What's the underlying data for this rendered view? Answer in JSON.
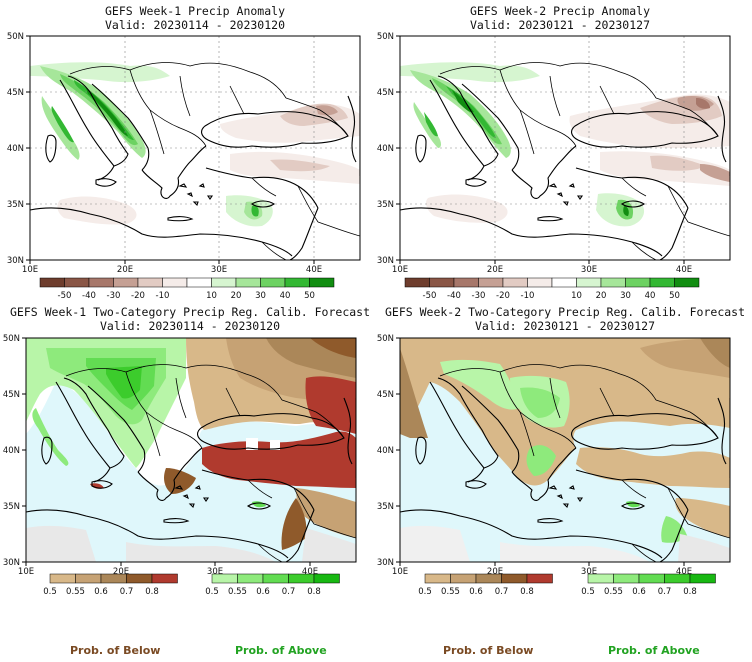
{
  "panels": [
    {
      "title": "GEFS Week-1 Precip Anomaly",
      "valid": "Valid: 20230114 - 20230120"
    },
    {
      "title": "GEFS Week-2 Precip Anomaly",
      "valid": "Valid: 20230121 - 20230127"
    },
    {
      "title": "GEFS Week-1 Two-Category Precip Reg. Calib. Forecast",
      "valid": "Valid: 20230114 - 20230120"
    },
    {
      "title": "GEFS Week-2 Two-Category Precip Reg. Calib. Forecast",
      "valid": "Valid: 20230121 - 20230127"
    }
  ],
  "axes": {
    "lat_labels": [
      "50N",
      "45N",
      "40N",
      "35N",
      "30N"
    ],
    "lon_labels": [
      "10E",
      "20E",
      "30E",
      "40E"
    ]
  },
  "anomaly_colorbar": {
    "labels": [
      "-50",
      "-40",
      "-30",
      "-20",
      "-10",
      "10",
      "20",
      "30",
      "40",
      "50"
    ],
    "colors": [
      "#6e3d2d",
      "#8a5646",
      "#a7776a",
      "#c5a094",
      "#e2cbc3",
      "#f5ece9",
      "#ffffff",
      "#d6f5d0",
      "#a6e69a",
      "#6dd262",
      "#33b833",
      "#118d11"
    ]
  },
  "prob_colorbar": {
    "labels": [
      "0.5",
      "0.55",
      "0.6",
      "0.7",
      "0.8"
    ],
    "below_colors": [
      "#d8b889",
      "#c6a274",
      "#ab8759",
      "#8f5a2b",
      "#b03a2e"
    ],
    "above_colors": [
      "#b8f5a8",
      "#8eea7c",
      "#62dc52",
      "#3ccc2c",
      "#18b812"
    ]
  },
  "legend": {
    "below_label": "Prob. of Below",
    "above_label": "Prob. of Above"
  }
}
